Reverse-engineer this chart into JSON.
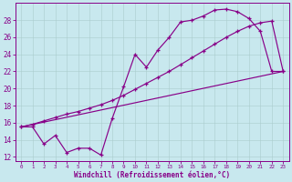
{
  "xlabel": "Windchill (Refroidissement éolien,°C)",
  "xlim": [
    -0.5,
    23.5
  ],
  "ylim": [
    11.5,
    30.0
  ],
  "xticks": [
    0,
    1,
    2,
    3,
    4,
    5,
    6,
    7,
    8,
    9,
    10,
    11,
    12,
    13,
    14,
    15,
    16,
    17,
    18,
    19,
    20,
    21,
    22,
    23
  ],
  "yticks": [
    12,
    14,
    16,
    18,
    20,
    22,
    24,
    26,
    28
  ],
  "bg_color": "#c8e8ee",
  "line_color": "#880088",
  "grid_color": "#aacccc",
  "curve1_x": [
    0,
    1,
    2,
    3,
    4,
    5,
    6,
    7,
    8,
    9,
    10,
    11,
    12,
    13,
    14,
    15,
    16,
    17,
    18,
    19,
    20,
    21,
    22,
    23
  ],
  "curve1_y": [
    15.5,
    15.5,
    13.5,
    14.5,
    12.5,
    13.0,
    13.0,
    12.2,
    16.5,
    20.2,
    24.0,
    22.5,
    24.5,
    26.0,
    27.8,
    28.0,
    28.5,
    29.2,
    29.3,
    29.0,
    28.2,
    26.7,
    22.0,
    22.0
  ],
  "curve2_x": [
    0,
    1,
    2,
    3,
    4,
    5,
    6,
    7,
    8,
    9,
    10,
    11,
    12,
    13,
    14,
    15,
    16,
    17,
    18,
    19,
    20,
    21,
    22,
    23
  ],
  "curve2_y": [
    15.5,
    15.8,
    16.2,
    16.6,
    17.0,
    17.3,
    17.7,
    18.1,
    18.6,
    19.2,
    19.9,
    20.6,
    21.3,
    22.0,
    22.8,
    23.6,
    24.4,
    25.2,
    26.0,
    26.7,
    27.3,
    27.7,
    27.9,
    22.0
  ],
  "curve3_x": [
    0,
    23
  ],
  "curve3_y": [
    15.5,
    22.0
  ]
}
